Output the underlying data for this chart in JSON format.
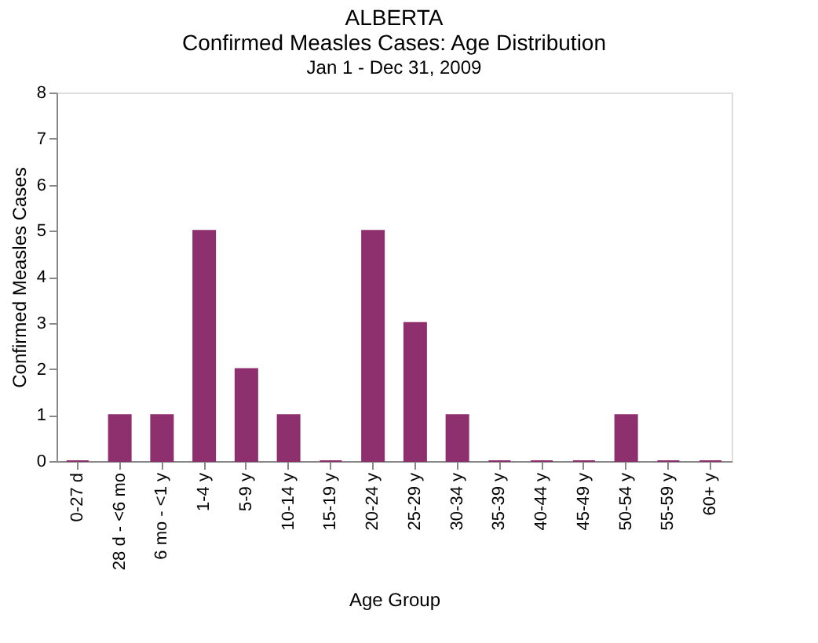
{
  "chart_data": {
    "type": "bar",
    "title": "ALBERTA\nConfirmed Measles Cases: Age Distribution",
    "subtitle": "Jan 1 - Dec 31, 2009",
    "xlabel": "Age Group",
    "ylabel": "Confirmed Measles Cases",
    "categories": [
      "0-27 d",
      "28 d - <6 mo",
      "6 mo - <1 y",
      "1-4 y",
      "5-9 y",
      "10-14 y",
      "15-19 y",
      "20-24 y",
      "25-29 y",
      "30-34 y",
      "35-39 y",
      "40-44 y",
      "45-49 y",
      "50-54 y",
      "55-59 y",
      "60+ y"
    ],
    "values": [
      0,
      1,
      1,
      5,
      2,
      1,
      0,
      5,
      3,
      1,
      0,
      0,
      0,
      1,
      0,
      0
    ],
    "color": "#8e2f6e",
    "ylim": [
      0,
      8
    ],
    "yticks": [
      0,
      1,
      2,
      3,
      4,
      5,
      6,
      7,
      8
    ],
    "grid": false
  }
}
